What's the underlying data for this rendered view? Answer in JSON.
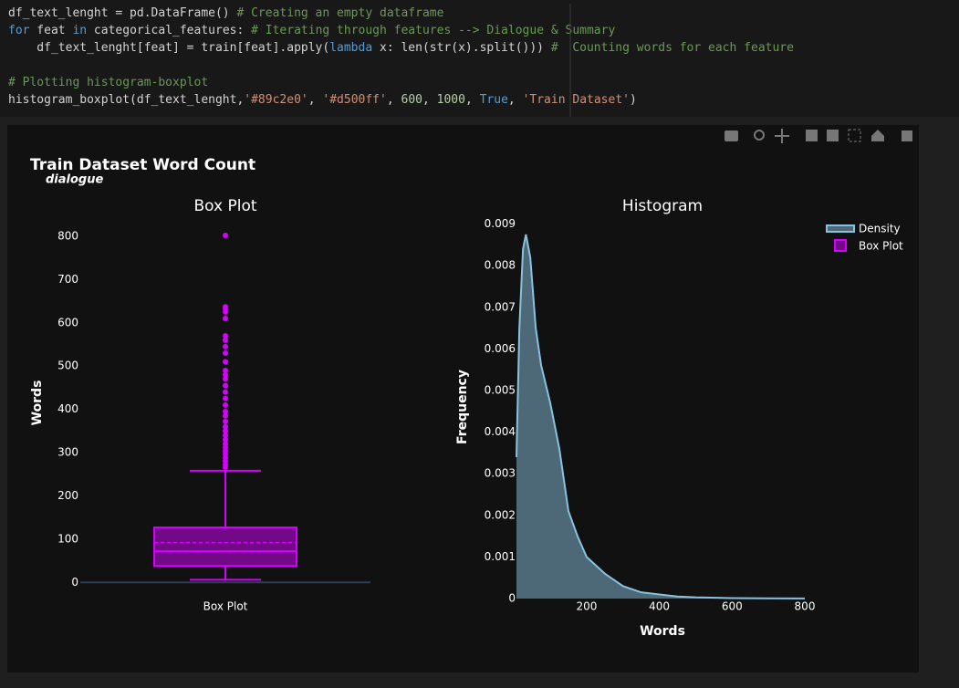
{
  "code": {
    "lines": [
      [
        {
          "text": "df_text_lenght = pd.DataFrame() ",
          "color": "#d4d4d4"
        },
        {
          "text": "# Creating an empty dataframe",
          "color": "#6a9955"
        }
      ],
      [
        {
          "text": "for",
          "color": "#569cd6"
        },
        {
          "text": " feat ",
          "color": "#d4d4d4"
        },
        {
          "text": "in",
          "color": "#569cd6"
        },
        {
          "text": " categorical_features: ",
          "color": "#d4d4d4"
        },
        {
          "text": "# Iterating through features --> Dialogue & Summary",
          "color": "#6a9955"
        }
      ],
      [
        {
          "text": "    df_text_lenght[feat] = train[feat].apply(",
          "color": "#d4d4d4"
        },
        {
          "text": "lambda",
          "color": "#569cd6"
        },
        {
          "text": " x: len(str(x).split())) ",
          "color": "#d4d4d4"
        },
        {
          "text": "#  Counting words for each feature",
          "color": "#6a9955"
        }
      ],
      [],
      [
        {
          "text": "# Plotting histogram-boxplot",
          "color": "#6a9955"
        }
      ],
      [
        {
          "text": "histogram_boxplot(df_text_lenght,",
          "color": "#d4d4d4"
        },
        {
          "text": "'#89c2e0'",
          "color": "#ce9178"
        },
        {
          "text": ", ",
          "color": "#d4d4d4"
        },
        {
          "text": "'#d500ff'",
          "color": "#ce9178"
        },
        {
          "text": ", ",
          "color": "#d4d4d4"
        },
        {
          "text": "600",
          "color": "#b5cea8"
        },
        {
          "text": ", ",
          "color": "#d4d4d4"
        },
        {
          "text": "1000",
          "color": "#b5cea8"
        },
        {
          "text": ", ",
          "color": "#d4d4d4"
        },
        {
          "text": "True",
          "color": "#569cd6"
        },
        {
          "text": ", ",
          "color": "#d4d4d4"
        },
        {
          "text": "'Train Dataset'",
          "color": "#ce9178"
        },
        {
          "text": ")",
          "color": "#d4d4d4"
        }
      ]
    ]
  },
  "figure": {
    "title": "Train Dataset Word Count",
    "subtitle": "dialogue"
  },
  "chart_data": [
    {
      "type": "box",
      "title": "Box Plot",
      "ylabel": "Words",
      "categories": [
        "Box Plot"
      ],
      "series": [
        {
          "name": "Box Plot",
          "color": "#d500ff",
          "min": 6,
          "q1": 38,
          "median": 72,
          "q3": 127,
          "max": 258,
          "mean": 92,
          "outliers": [
            266,
            272,
            280,
            288,
            296,
            304,
            312,
            320,
            330,
            340,
            350,
            360,
            372,
            385,
            395,
            410,
            425,
            440,
            455,
            470,
            480,
            490,
            510,
            530,
            545,
            560,
            570,
            610,
            625,
            632,
            637,
            802
          ]
        }
      ],
      "ylim": [
        -10,
        840
      ],
      "yticks": [
        0,
        100,
        200,
        300,
        400,
        500,
        600,
        700,
        800
      ]
    },
    {
      "type": "area",
      "title": "Histogram",
      "xlabel": "Words",
      "ylabel": "Frequency",
      "x": [
        7,
        15,
        25,
        33,
        45,
        60,
        75,
        100,
        125,
        150,
        175,
        200,
        225,
        250,
        300,
        350,
        400,
        450,
        500,
        600,
        700,
        800
      ],
      "series": [
        {
          "name": "Density",
          "color": "#89c2e0",
          "values": [
            0.0034,
            0.0065,
            0.0084,
            0.00875,
            0.0082,
            0.0065,
            0.0056,
            0.0047,
            0.0036,
            0.0021,
            0.0015,
            0.001,
            0.0008,
            0.0006,
            0.0003,
            0.00015,
            0.0001,
            5e-05,
            3e-05,
            1e-05,
            5e-06,
            2e-06
          ]
        }
      ],
      "xlim": [
        7,
        800
      ],
      "xticks": [
        200,
        400,
        600,
        800
      ],
      "ylim": [
        0,
        0.0091
      ],
      "yticks": [
        0,
        0.001,
        0.002,
        0.003,
        0.004,
        0.005,
        0.006,
        0.007,
        0.008,
        0.009
      ]
    }
  ]
}
